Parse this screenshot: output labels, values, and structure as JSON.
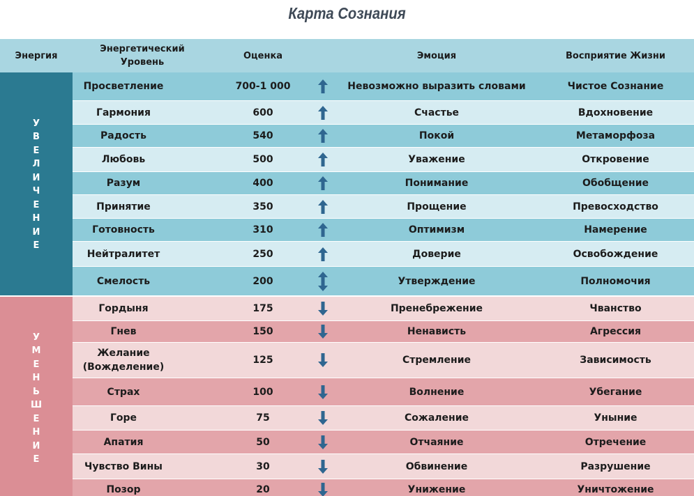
{
  "title": "Карта Сознания",
  "headers": {
    "energy": "Энергия",
    "level": "Энергетический Уровень",
    "score": "Оценка",
    "emotion": "Эмоция",
    "life": "Восприятие Жизни"
  },
  "side_labels": {
    "increase": "Увеличение",
    "decrease": "Уменьшение"
  },
  "colors": {
    "header": "#a9d6e1",
    "increase_side": "#2b7a91",
    "decrease_side": "#db8e95",
    "increase_dark": "#8ecbd9",
    "increase_light": "#d6ecf2",
    "decrease_dark": "#e3a5aa",
    "decrease_light": "#f2d8d9",
    "arrow": "#2f6690"
  },
  "rows": [
    {
      "level": "Просветление",
      "score": "700-1 000",
      "arrow": "up",
      "emotion": "Невозможно выразить словами",
      "life": "Чистое Сознание"
    },
    {
      "level": "Гармония",
      "score": "600",
      "arrow": "up",
      "emotion": "Счастье",
      "life": "Вдохновение"
    },
    {
      "level": "Радость",
      "score": "540",
      "arrow": "up",
      "emotion": "Покой",
      "life": "Метаморфоза"
    },
    {
      "level": "Любовь",
      "score": "500",
      "arrow": "up",
      "emotion": "Уважение",
      "life": "Откровение"
    },
    {
      "level": "Разум",
      "score": "400",
      "arrow": "up",
      "emotion": "Понимание",
      "life": "Обобщение"
    },
    {
      "level": "Принятие",
      "score": "350",
      "arrow": "up",
      "emotion": "Прощение",
      "life": "Превосходство"
    },
    {
      "level": "Готовность",
      "score": "310",
      "arrow": "up",
      "emotion": "Оптимизм",
      "life": "Намерение"
    },
    {
      "level": "Нейтралитет",
      "score": "250",
      "arrow": "up",
      "emotion": "Доверие",
      "life": "Освобождение"
    },
    {
      "level": "Смелость",
      "score": "200",
      "arrow": "both",
      "emotion": "Утверждение",
      "life": "Полномочия"
    },
    {
      "level": "Гордыня",
      "score": "175",
      "arrow": "down",
      "emotion": "Пренебрежение",
      "life": "Чванство"
    },
    {
      "level": "Гнев",
      "score": "150",
      "arrow": "down",
      "emotion": "Ненависть",
      "life": "Агрессия"
    },
    {
      "level": "Желание (Вожделение)",
      "score": "125",
      "arrow": "down",
      "emotion": "Стремление",
      "life": "Зависимость"
    },
    {
      "level": "Страх",
      "score": "100",
      "arrow": "down",
      "emotion": "Волнение",
      "life": "Убегание"
    },
    {
      "level": "Горе",
      "score": "75",
      "arrow": "down",
      "emotion": "Сожаление",
      "life": "Уныние"
    },
    {
      "level": "Апатия",
      "score": "50",
      "arrow": "down",
      "emotion": "Отчаяние",
      "life": "Отречение"
    },
    {
      "level": "Чувство Вины",
      "score": "30",
      "arrow": "down",
      "emotion": "Обвинение",
      "life": "Разрушение"
    },
    {
      "level": "Позор",
      "score": "20",
      "arrow": "down",
      "emotion": "Унижение",
      "life": "Уничтожение"
    }
  ]
}
